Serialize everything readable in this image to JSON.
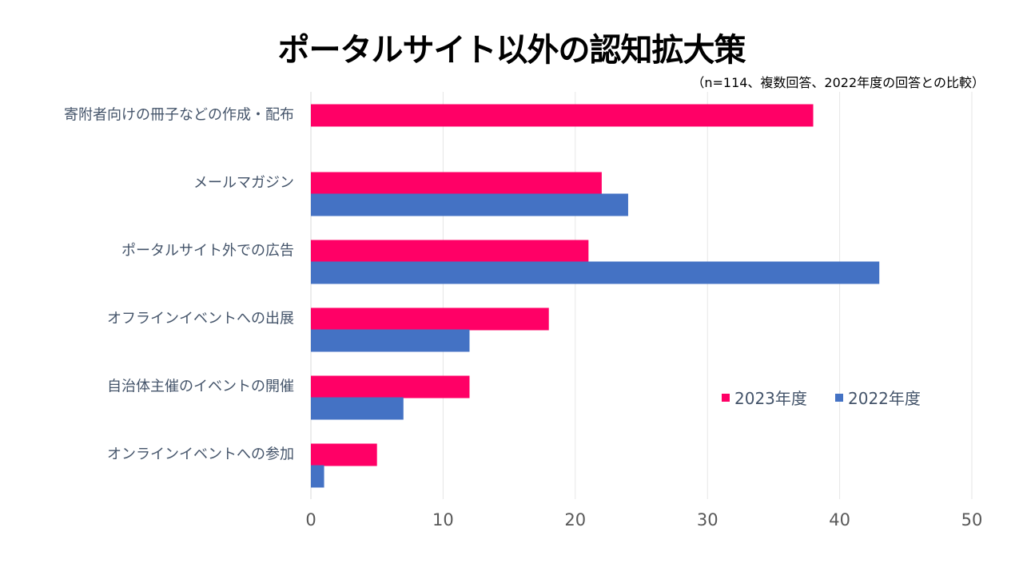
{
  "chart_data": {
    "type": "bar",
    "orientation": "horizontal",
    "title": "ポータルサイト以外の認知拡大策",
    "subtitle": "（n=114、複数回答、2022年度の回答との比較）",
    "categories": [
      "寄附者向けの冊子などの作成・配布",
      "メールマガジン",
      "ポータルサイト外での広告",
      "オフラインイベントへの出展",
      "自治体主催のイベントの開催",
      "オンラインイベントへの参加"
    ],
    "series": [
      {
        "name": "2023年度",
        "color": "#ff0066",
        "values": [
          38,
          22,
          21,
          18,
          12,
          5
        ]
      },
      {
        "name": "2022年度",
        "color": "#4472c4",
        "values": [
          null,
          24,
          43,
          12,
          7,
          1
        ]
      }
    ],
    "xlim": [
      0,
      50
    ],
    "xticks": [
      "0",
      "10",
      "20",
      "30",
      "40",
      "50"
    ],
    "xtick_values": [
      0,
      10,
      20,
      30,
      40,
      50
    ],
    "grid": true,
    "legend_position": "lower-right-inside",
    "xlabel": "",
    "ylabel": ""
  }
}
